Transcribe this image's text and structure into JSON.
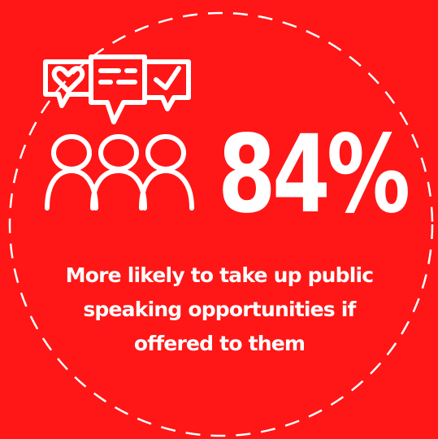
{
  "colors": {
    "background": "#ff1616",
    "foreground": "#ffffff"
  },
  "icons": [
    "heart-speech-bubble-icon",
    "text-speech-bubble-icon",
    "check-speech-bubble-icon",
    "people-group-icon"
  ],
  "stat": {
    "value": "84%"
  },
  "caption": {
    "text": "More likely to take up public speaking opportunities if offered to them"
  }
}
